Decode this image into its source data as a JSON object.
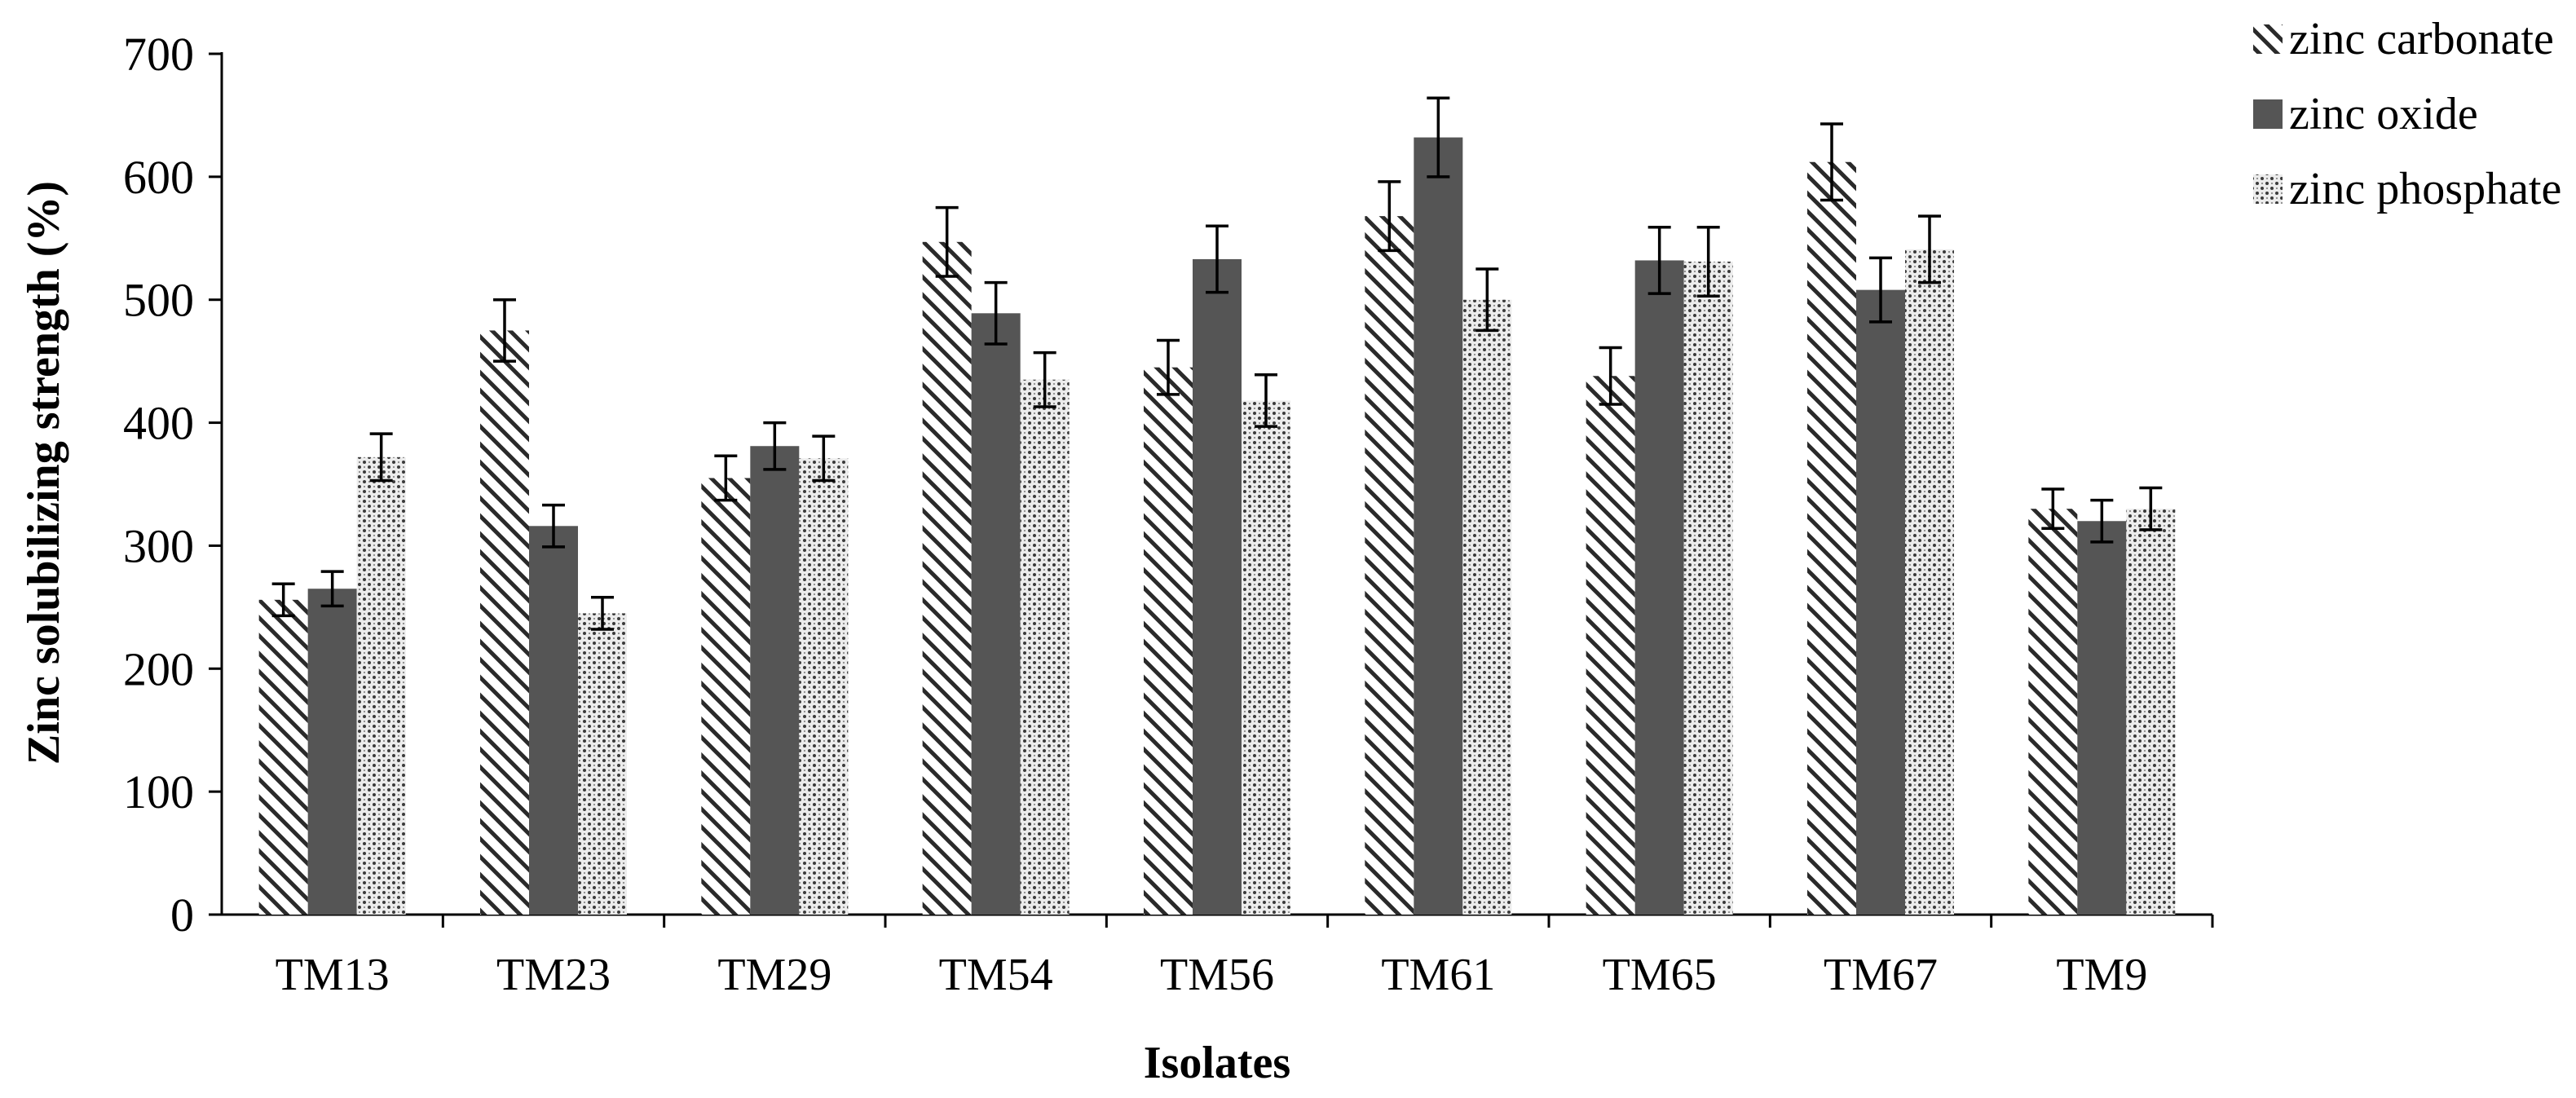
{
  "chart_data": {
    "type": "bar",
    "title": "",
    "xlabel": "Isolates",
    "ylabel": "Zinc solubilizing strength (%)",
    "ylim": [
      0,
      700
    ],
    "yticks": [
      0,
      100,
      200,
      300,
      400,
      500,
      600,
      700
    ],
    "grid": false,
    "legend_position": "top-right",
    "categories": [
      "TM13",
      "TM23",
      "TM29",
      "TM54",
      "TM56",
      "TM61",
      "TM65",
      "TM67",
      "TM9"
    ],
    "series": [
      {
        "name": "zinc carbonate",
        "pattern": "diagonal-hatch",
        "values": [
          256,
          475,
          355,
          547,
          445,
          568,
          438,
          612,
          330
        ],
        "errors": [
          13,
          25,
          18,
          28,
          22,
          28,
          23,
          31,
          16
        ]
      },
      {
        "name": "zinc oxide",
        "pattern": "solid",
        "color": "#555555",
        "values": [
          265,
          316,
          381,
          489,
          533,
          632,
          532,
          508,
          320
        ],
        "errors": [
          14,
          17,
          19,
          25,
          27,
          32,
          27,
          26,
          17
        ]
      },
      {
        "name": "zinc phosphate",
        "pattern": "dotted",
        "values": [
          372,
          245,
          371,
          435,
          418,
          500,
          531,
          541,
          330
        ],
        "errors": [
          19,
          13,
          18,
          22,
          21,
          25,
          28,
          27,
          17
        ]
      }
    ]
  }
}
